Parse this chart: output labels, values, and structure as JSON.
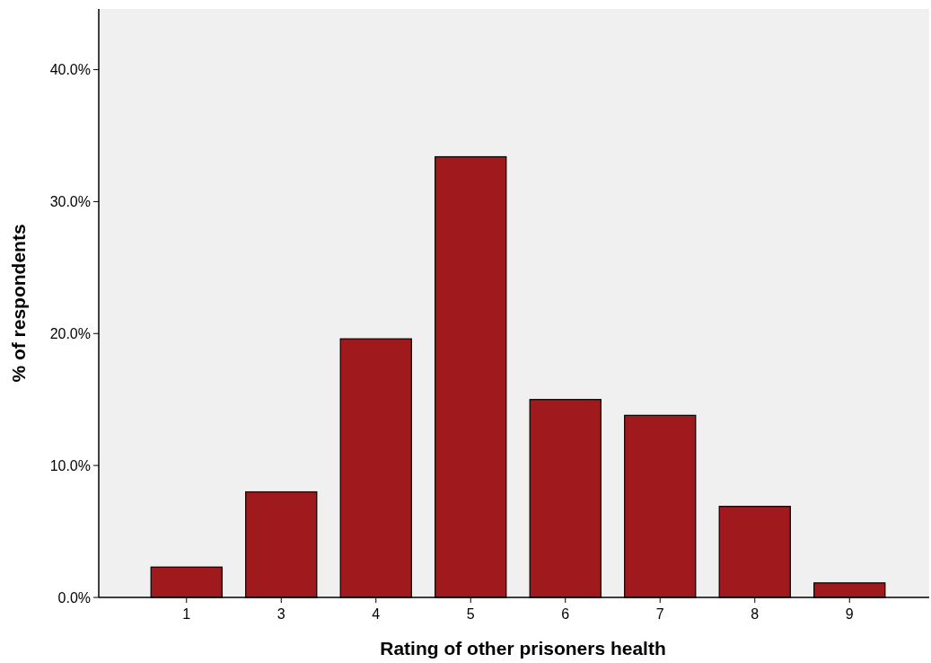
{
  "chart_data": {
    "type": "bar",
    "xlabel": "Rating of other prisoners health",
    "ylabel": "% of respondents",
    "categories": [
      "1",
      "3",
      "4",
      "5",
      "6",
      "7",
      "8",
      "9"
    ],
    "values": [
      2.3,
      8.0,
      19.6,
      33.4,
      15.0,
      13.8,
      6.9,
      1.1
    ],
    "color": "#a0191c",
    "ylim": [
      0,
      44.6
    ],
    "yticks": [
      {
        "value": 0,
        "label": "0.0%"
      },
      {
        "value": 10,
        "label": "10.0%"
      },
      {
        "value": 20,
        "label": "20.0%"
      },
      {
        "value": 30,
        "label": "30.0%"
      },
      {
        "value": 40,
        "label": "40.0%"
      }
    ]
  }
}
